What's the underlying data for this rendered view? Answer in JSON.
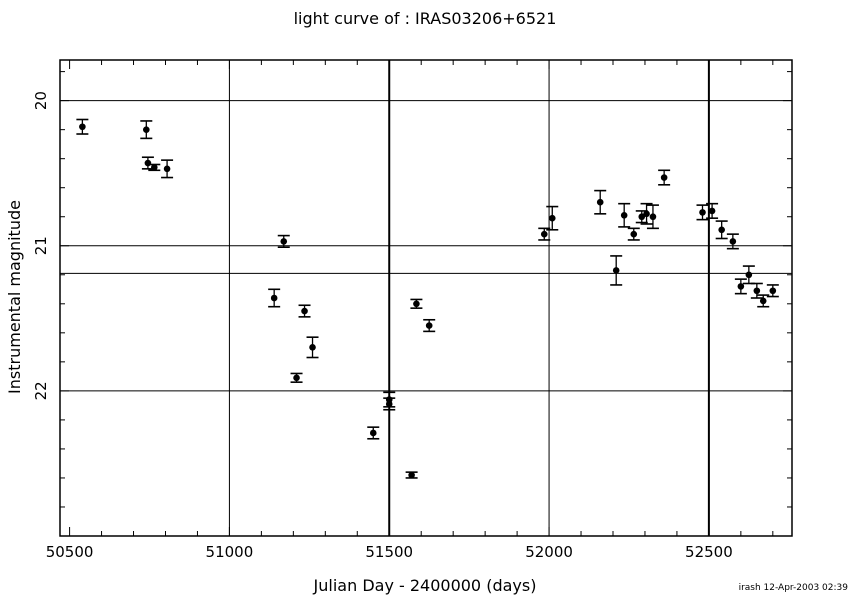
{
  "chart_data": {
    "type": "scatter",
    "title": "light curve of : IRAS03206+6521",
    "xlabel": "Julian Day - 2400000 (days)",
    "ylabel": "Instrumental magnitude",
    "xlim": [
      50470,
      52760
    ],
    "ylim": [
      19.72,
      23.0
    ],
    "y_inverted": true,
    "x_ticks": [
      50500,
      51000,
      51500,
      52000,
      52500
    ],
    "y_ticks": [
      20,
      21,
      22
    ],
    "x_grid_lines": [
      51000,
      51500,
      52000,
      52500
    ],
    "y_grid_lines": [
      20.0,
      21.0,
      21.19,
      22.0
    ],
    "grid": true,
    "footer": "irash 12-Apr-2003 02:39",
    "series": [
      {
        "marker": "filled-circle",
        "error_bars": true,
        "points": [
          {
            "x": 50540,
            "y": 20.18,
            "err": 0.05
          },
          {
            "x": 50740,
            "y": 20.2,
            "err": 0.06
          },
          {
            "x": 50745,
            "y": 20.43,
            "err": 0.04
          },
          {
            "x": 50765,
            "y": 20.46,
            "err": 0.02
          },
          {
            "x": 50805,
            "y": 20.47,
            "err": 0.06
          },
          {
            "x": 51140,
            "y": 21.36,
            "err": 0.06
          },
          {
            "x": 51170,
            "y": 20.97,
            "err": 0.04
          },
          {
            "x": 51210,
            "y": 21.91,
            "err": 0.03
          },
          {
            "x": 51235,
            "y": 21.45,
            "err": 0.04
          },
          {
            "x": 51260,
            "y": 21.7,
            "err": 0.07
          },
          {
            "x": 51450,
            "y": 22.29,
            "err": 0.04
          },
          {
            "x": 51500,
            "y": 22.06,
            "err": 0.05
          },
          {
            "x": 51500,
            "y": 22.09,
            "err": 0.04
          },
          {
            "x": 51570,
            "y": 22.58,
            "err": 0.02
          },
          {
            "x": 51585,
            "y": 21.4,
            "err": 0.03
          },
          {
            "x": 51625,
            "y": 21.55,
            "err": 0.04
          },
          {
            "x": 51985,
            "y": 20.92,
            "err": 0.04
          },
          {
            "x": 52010,
            "y": 20.81,
            "err": 0.08
          },
          {
            "x": 52160,
            "y": 20.7,
            "err": 0.08
          },
          {
            "x": 52210,
            "y": 21.17,
            "err": 0.1
          },
          {
            "x": 52235,
            "y": 20.79,
            "err": 0.08
          },
          {
            "x": 52265,
            "y": 20.92,
            "err": 0.04
          },
          {
            "x": 52290,
            "y": 20.8,
            "err": 0.04
          },
          {
            "x": 52305,
            "y": 20.78,
            "err": 0.07
          },
          {
            "x": 52325,
            "y": 20.8,
            "err": 0.08
          },
          {
            "x": 52360,
            "y": 20.53,
            "err": 0.05
          },
          {
            "x": 52480,
            "y": 20.77,
            "err": 0.05
          },
          {
            "x": 52510,
            "y": 20.76,
            "err": 0.05
          },
          {
            "x": 52540,
            "y": 20.89,
            "err": 0.06
          },
          {
            "x": 52575,
            "y": 20.97,
            "err": 0.05
          },
          {
            "x": 52600,
            "y": 21.28,
            "err": 0.05
          },
          {
            "x": 52625,
            "y": 21.2,
            "err": 0.06
          },
          {
            "x": 52650,
            "y": 21.31,
            "err": 0.05
          },
          {
            "x": 52670,
            "y": 21.38,
            "err": 0.04
          },
          {
            "x": 52700,
            "y": 21.31,
            "err": 0.04
          }
        ]
      }
    ]
  }
}
